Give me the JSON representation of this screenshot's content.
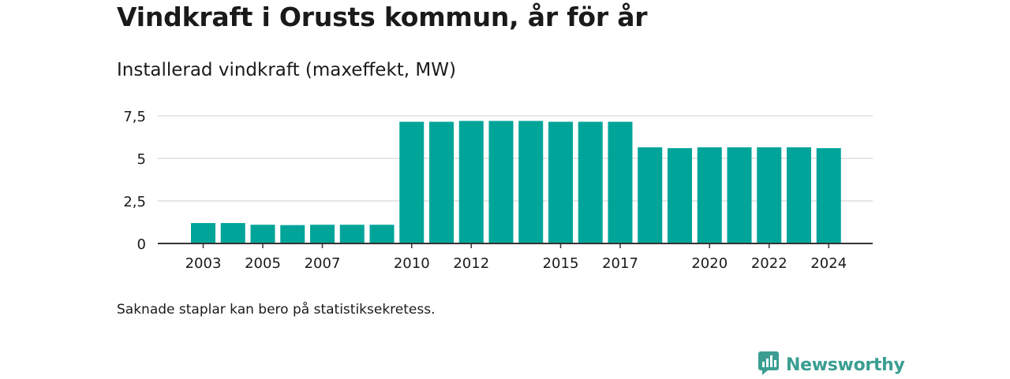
{
  "title": "Vindkraft i Orusts kommun, år för år",
  "subtitle": "Installerad vindkraft (maxeffekt, MW)",
  "note": "Saknade staplar kan bero på statistiksekretess.",
  "logo": {
    "text": "Newsworthy",
    "icon": "newsworthy-chart-bubble-icon",
    "color": "#3a9e92"
  },
  "chart_data": {
    "type": "bar",
    "categories": [
      "2003",
      "2004",
      "2005",
      "2006",
      "2007",
      "2008",
      "2009",
      "2010",
      "2011",
      "2012",
      "2013",
      "2014",
      "2015",
      "2016",
      "2017",
      "2018",
      "2019",
      "2020",
      "2021",
      "2022",
      "2023",
      "2024"
    ],
    "values": [
      1.2,
      1.2,
      1.1,
      1.08,
      1.1,
      1.1,
      1.1,
      7.15,
      7.15,
      7.2,
      7.2,
      7.2,
      7.15,
      7.15,
      7.15,
      5.65,
      5.6,
      5.65,
      5.65,
      5.65,
      5.65,
      5.6
    ],
    "x_tick_labels": [
      "2003",
      "2005",
      "2007",
      "2010",
      "2012",
      "2015",
      "2017",
      "2020",
      "2022",
      "2024"
    ],
    "y_ticks": [
      0,
      2.5,
      5,
      7.5
    ],
    "y_tick_labels": [
      "0",
      "2,5",
      "5",
      "7,5"
    ],
    "ylim": [
      0,
      7.5
    ],
    "xlabel": "",
    "ylabel": "",
    "grid": true,
    "bar_color": "#00a499"
  }
}
